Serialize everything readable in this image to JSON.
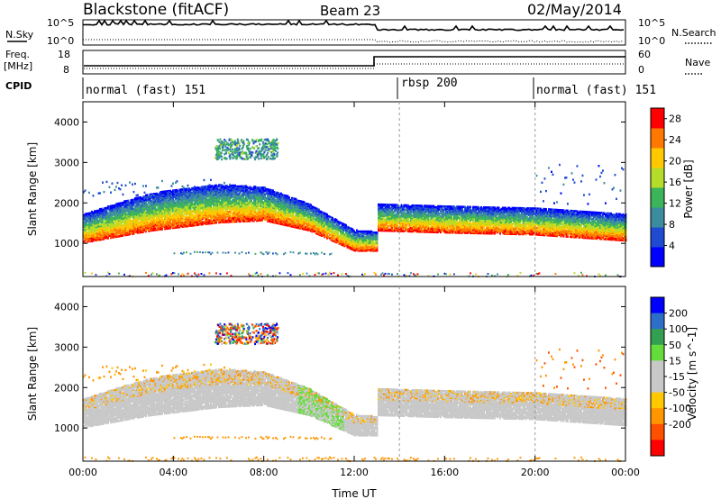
{
  "header": {
    "title": "Blackstone (fitACF)",
    "beam": "Beam 23",
    "date": "02/May/2014"
  },
  "colors": {
    "background": "#ffffff",
    "axis": "#000000",
    "power_scale": [
      "#0000ff",
      "#1e4bd2",
      "#3c8ca0",
      "#3cb45a",
      "#b4dc28",
      "#ffc800",
      "#ff7800",
      "#ff0000"
    ],
    "velocity_scale": [
      "#ff0000",
      "#ff5000",
      "#ff9600",
      "#ffc800",
      "#c8c8c8",
      "#c8c8c8",
      "#64dc3c",
      "#32a050",
      "#2d6ec8",
      "#0000ff"
    ],
    "ground_scatter": "#c8c8c8"
  },
  "top_panels": {
    "nsky_label": "N.Sky",
    "nsky_ticks": [
      "10^5",
      "10^0"
    ],
    "nsearch_label": "N.Search",
    "nsearch_ticks": [
      "10^5",
      "10^0"
    ],
    "freq_label_line1": "Freq.",
    "freq_label_line2": "[MHz]",
    "freq_ticks": [
      "18",
      "8"
    ],
    "nave_label": "Nave",
    "nave_ticks": [
      "60",
      "0"
    ],
    "cpid_label": "CPID",
    "cpid_segments": [
      {
        "label": "normal (fast) 151",
        "start_hour": 0,
        "end_hour": 14
      },
      {
        "label": "rbsp 200",
        "start_hour": 14,
        "end_hour": 20
      },
      {
        "label": "normal (fast) 151",
        "start_hour": 20,
        "end_hour": 24
      }
    ]
  },
  "chart_data": [
    {
      "type": "heatmap",
      "quantity": "Power",
      "ylabel": "Slant Range [km]",
      "xlim": [
        0,
        24
      ],
      "ylim": [
        180,
        4500
      ],
      "yticks": [
        1000,
        2000,
        3000,
        4000
      ],
      "colorbar_label": "Power [dB]",
      "colorbar_ticks": [
        4,
        8,
        12,
        16,
        20,
        24,
        28
      ],
      "colorbar_range": [
        0,
        30
      ],
      "features": [
        {
          "band": "main",
          "time_range": [
            0,
            13
          ],
          "range_profile_km": [
            [
              0,
              1200
            ],
            [
              3,
              1500
            ],
            [
              6,
              1700
            ],
            [
              8,
              1750
            ],
            [
              10,
              1500
            ],
            [
              12,
              1000
            ],
            [
              13,
              1000
            ]
          ],
          "peak_db": 28
        },
        {
          "band": "main",
          "time_range": [
            13,
            24
          ],
          "range_profile_km": [
            [
              13,
              1500
            ],
            [
              16,
              1450
            ],
            [
              20,
              1400
            ],
            [
              24,
              1250
            ]
          ],
          "peak_db": 26
        },
        {
          "band": "patch",
          "time_range": [
            5.8,
            8.6
          ],
          "range_km": [
            3100,
            3600
          ],
          "peak_db": 14
        }
      ]
    },
    {
      "type": "heatmap",
      "quantity": "Velocity",
      "ylabel": "Slant Range [km]",
      "xlabel": "Time UT",
      "xlim": [
        0,
        24
      ],
      "ylim": [
        180,
        4500
      ],
      "yticks": [
        1000,
        2000,
        3000,
        4000
      ],
      "xticks": [
        "00:00",
        "04:00",
        "08:00",
        "12:00",
        "16:00",
        "20:00",
        "00:00"
      ],
      "colorbar_label": "Velocity [m s^-1]",
      "colorbar_ticks": [
        200,
        100,
        50,
        15,
        -15,
        -50,
        -100,
        -200
      ],
      "colorbar_range": [
        -250,
        250
      ]
    }
  ]
}
